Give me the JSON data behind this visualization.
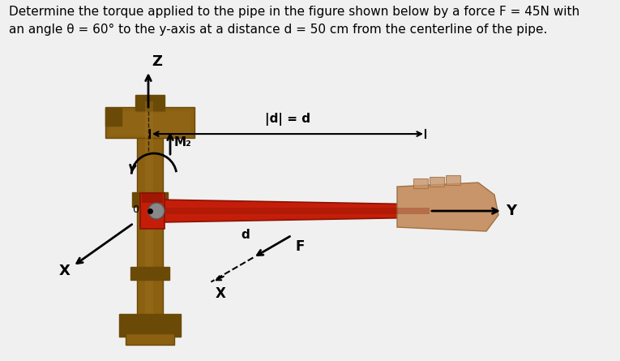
{
  "title_line1": "Determine the torque applied to the pipe in the figure shown below by a force F = 45N with",
  "title_line2": "an angle θ = 60° to the y-axis at a distance d = 50 cm from the centerline of the pipe.",
  "title_fontsize": 11.0,
  "bg_color": "#f0f0f0",
  "fig_width": 7.65,
  "fig_height": 4.45,
  "dpi": 100,
  "label_Mz": "M₂",
  "label_d_abs": "|d| = d",
  "label_d": "d",
  "label_F": "F",
  "label_X_left": "X",
  "label_X_bottom": "X",
  "label_Y": "Y",
  "label_Z": "Z",
  "label_O": "0",
  "pipe_color_main": "#8B6010",
  "pipe_color_dark": "#6B4A08",
  "pipe_color_mid": "#7A5510",
  "pipe_color_light": "#9B7020",
  "wrench_red": "#C41E0A",
  "wrench_dark_red": "#8B1200",
  "hand_color": "#C8956A",
  "hand_dark": "#A07040"
}
